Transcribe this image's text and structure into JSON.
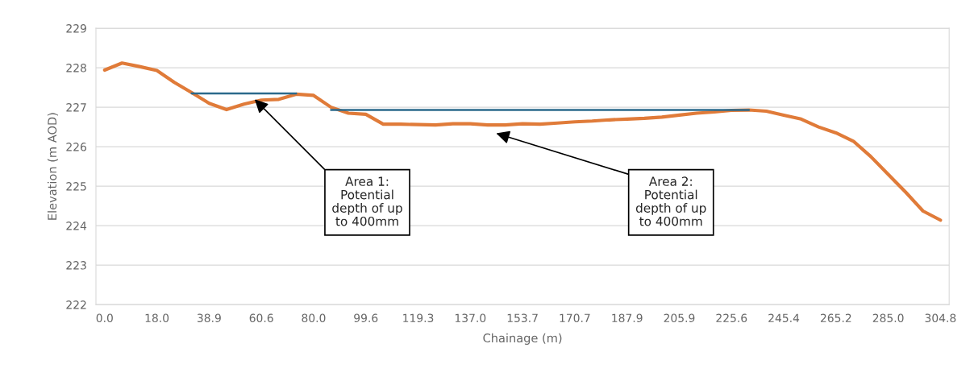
{
  "chart_data": {
    "type": "line",
    "xlabel": "Chainage (m)",
    "ylabel": "Elevation (m AOD)",
    "categories": [
      "0.0",
      null,
      null,
      "18.0",
      null,
      null,
      "38.9",
      null,
      null,
      "60.6",
      null,
      null,
      "80.0",
      null,
      null,
      "99.6",
      null,
      null,
      "119.3",
      null,
      null,
      "137.0",
      null,
      null,
      "153.7",
      null,
      null,
      "170.7",
      null,
      null,
      "187.9",
      null,
      null,
      "205.9",
      null,
      null,
      "225.6",
      null,
      null,
      "245.4",
      null,
      null,
      "265.2",
      null,
      null,
      "285.0",
      null,
      null,
      "304.8"
    ],
    "series": [
      {
        "color": "#e07b39",
        "values": [
          227.94,
          228.12,
          228.03,
          227.93,
          227.63,
          227.37,
          227.1,
          226.94,
          227.08,
          227.18,
          227.2,
          227.33,
          227.3,
          227.0,
          226.85,
          226.82,
          226.57,
          226.57,
          226.56,
          226.55,
          226.58,
          226.58,
          226.55,
          226.55,
          226.58,
          226.57,
          226.6,
          226.63,
          226.65,
          226.68,
          226.7,
          226.72,
          226.75,
          226.8,
          226.85,
          226.88,
          226.92,
          226.93,
          226.9,
          226.8,
          226.7,
          226.5,
          226.35,
          226.14,
          225.75,
          225.3,
          224.85,
          224.37,
          224.14
        ]
      },
      {
        "color": "#2b6a8c",
        "values": [
          null,
          null,
          null,
          null,
          null,
          227.35,
          227.35,
          227.35,
          227.35,
          227.35,
          227.35,
          227.35,
          null,
          null,
          null,
          null,
          null,
          null,
          null,
          null,
          null,
          null,
          null,
          null,
          null,
          null,
          null,
          null,
          null,
          null,
          null,
          null,
          null,
          null,
          null,
          null,
          null,
          null,
          null,
          null,
          null,
          null,
          null,
          null,
          null,
          null,
          null,
          null,
          null
        ]
      },
      {
        "color": "#2b6a8c",
        "values": [
          null,
          null,
          null,
          null,
          null,
          null,
          null,
          null,
          null,
          null,
          null,
          null,
          null,
          226.93,
          226.93,
          226.93,
          226.93,
          226.93,
          226.93,
          226.93,
          226.93,
          226.93,
          226.93,
          226.93,
          226.93,
          226.93,
          226.93,
          226.93,
          226.93,
          226.93,
          226.93,
          226.93,
          226.93,
          226.93,
          226.93,
          226.93,
          226.93,
          226.93,
          null,
          null,
          null,
          null,
          null,
          null,
          null,
          null,
          null,
          null,
          null
        ]
      }
    ],
    "ylim": [
      222,
      229
    ],
    "yticks": [
      222,
      223,
      224,
      225,
      226,
      227,
      228,
      229
    ],
    "grid": "y",
    "legend": false,
    "marker": "none",
    "line_style": "solid",
    "annotations": [
      "Area 1:\nPotential\ndepth of up\nto 400mm",
      "Area 2:\nPotential\ndepth of up\nto 400mm"
    ]
  }
}
